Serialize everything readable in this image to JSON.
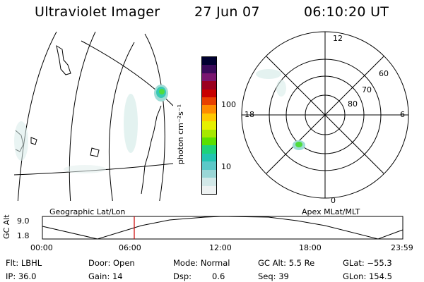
{
  "header": {
    "title": "Ultraviolet Imager",
    "date": "27 Jun 07",
    "time": "06:10:20 UT"
  },
  "colorbar": {
    "unit_label": "photon cm⁻²s⁻¹",
    "ticks": [
      "100",
      "10"
    ],
    "colors": [
      "#000030",
      "#3a0a5a",
      "#7a1670",
      "#9b0020",
      "#c80000",
      "#e84000",
      "#ff8c00",
      "#ffc800",
      "#e6f000",
      "#a6e800",
      "#5ae000",
      "#1ed27a",
      "#22c4b0",
      "#5cc8c8",
      "#9ad6d6",
      "#d2e8e8",
      "#eef2f2"
    ]
  },
  "geo_map": {
    "label": "Geographic Lat/Lon"
  },
  "polar_plot": {
    "label": "Apex MLat/MLT",
    "mlt_labels": [
      "12",
      "18",
      "6",
      "0"
    ],
    "lat_labels": [
      "60",
      "70",
      "80"
    ]
  },
  "timeline": {
    "axis_title": "GC Alt",
    "y_ticks": [
      "9.0",
      "1.8"
    ],
    "x_ticks": [
      "00:00",
      "06:00",
      "12:00",
      "18:00",
      "23:59"
    ],
    "marker_color": "#cc0000"
  },
  "info": {
    "flt": "Flt: LBHL",
    "ip": "IP: 36.0",
    "door": "Door: Open",
    "gain": "Gain: 14",
    "mode": "Mode: Normal",
    "dsp_label": "Dsp:",
    "dsp_value": "0.6",
    "gc_alt": "GC Alt: 5.5 Re",
    "seq": "Seq: 39",
    "glat": "GLat: −55.3",
    "glon": "GLon: 154.5"
  }
}
